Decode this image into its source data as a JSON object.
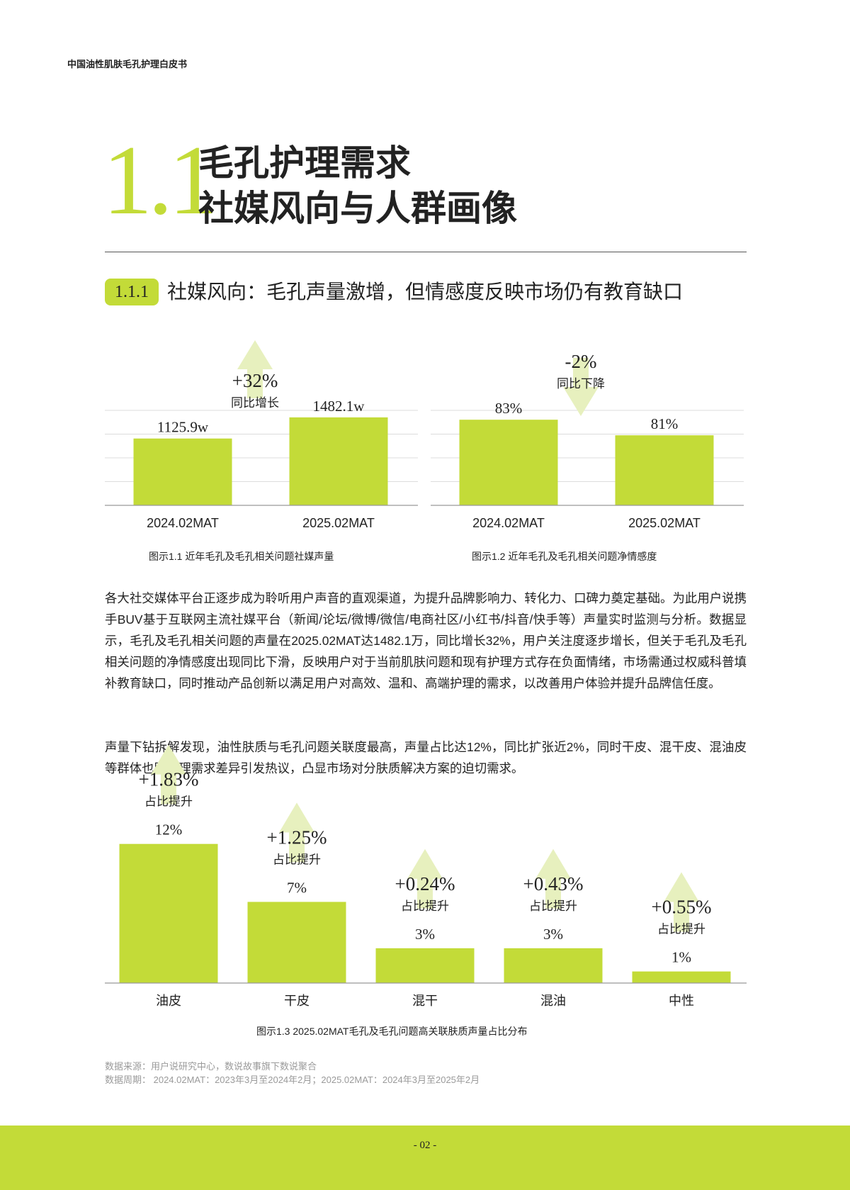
{
  "header": {
    "running_title": "中国油性肌肤毛孔护理白皮书"
  },
  "section": {
    "number": "1.1",
    "title_line1": "毛孔护理需求",
    "title_line2": "社媒风向与人群画像"
  },
  "subsection": {
    "number": "1.1.1",
    "title": "社媒风向：毛孔声量激增，但情感度反映市场仍有教育缺口"
  },
  "chart_data": [
    {
      "type": "bar",
      "categories": [
        "2024.02MAT",
        "2025.02MAT"
      ],
      "values": [
        1125.9,
        1482.1
      ],
      "value_labels": [
        "1125.9w",
        "1482.1w"
      ],
      "ylim": [
        0,
        1600
      ],
      "change": {
        "value": "+32%",
        "label": "同比增长",
        "direction": "up"
      },
      "caption": "图示1.1  近年毛孔及毛孔相关问题社媒声量",
      "bar_color": "#c3db38",
      "grid": true
    },
    {
      "type": "bar",
      "categories": [
        "2024.02MAT",
        "2025.02MAT"
      ],
      "values": [
        83,
        81
      ],
      "value_labels": [
        "83%",
        "81%"
      ],
      "ylim": [
        72,
        84.2
      ],
      "change": {
        "value": "-2%",
        "label": "同比下降",
        "direction": "down"
      },
      "caption": "图示1.2  近年毛孔及毛孔相关问题净情感度",
      "bar_color": "#c3db38",
      "grid": true
    },
    {
      "type": "bar",
      "categories": [
        "油皮",
        "干皮",
        "混干",
        "混油",
        "中性"
      ],
      "values": [
        12,
        7,
        3,
        3,
        1
      ],
      "value_labels": [
        "12%",
        "7%",
        "3%",
        "3%",
        "1%"
      ],
      "ylim": [
        0,
        14
      ],
      "changes": [
        {
          "value": "+1.83%",
          "label": "占比提升"
        },
        {
          "value": "+1.25%",
          "label": "占比提升"
        },
        {
          "value": "+0.24%",
          "label": "占比提升"
        },
        {
          "value": "+0.43%",
          "label": "占比提升"
        },
        {
          "value": "+0.55%",
          "label": "占比提升"
        }
      ],
      "caption": "图示1.3  2025.02MAT毛孔及毛孔问题高关联肤质声量占比分布",
      "bar_color": "#c3db38"
    }
  ],
  "body": {
    "paragraph1": "各大社交媒体平台正逐步成为聆听用户声音的直观渠道，为提升品牌影响力、转化力、口碑力奠定基础。为此用户说携手BUV基于互联网主流社媒平台（新闻/论坛/微博/微信/电商社区/小红书/抖音/快手等）声量实时监测与分析。数据显示，毛孔及毛孔相关问题的声量在2025.02MAT达1482.1万，同比增长32%，用户关注度逐步增长，但关于毛孔及毛孔相关问题的净情感度出现同比下滑，反映用户对于当前肌肤问题和现有护理方式存在负面情绪，市场需通过权威科普填补教育缺口，同时推动产品创新以满足用户对高效、温和、高端护理的需求，以改善用户体验并提升品牌信任度。",
    "paragraph2": "声量下钻拆解发现，油性肤质与毛孔问题关联度最高，声量占比达12%，同比扩张近2%，同时干皮、混干皮、混油皮等群体也因护理需求差异引发热议，凸显市场对分肤质解决方案的迫切需求。"
  },
  "source": {
    "line1": "数据来源：用户说研究中心，数说故事旗下数说聚合",
    "line2": "数据周期：  2024.02MAT：2023年3月至2024年2月；2025.02MAT：2024年3月至2025年2月"
  },
  "footer": {
    "page": "- 02 -"
  },
  "colors": {
    "accent": "#c3db38",
    "arrow": "#e7f0be",
    "text": "#222222"
  }
}
